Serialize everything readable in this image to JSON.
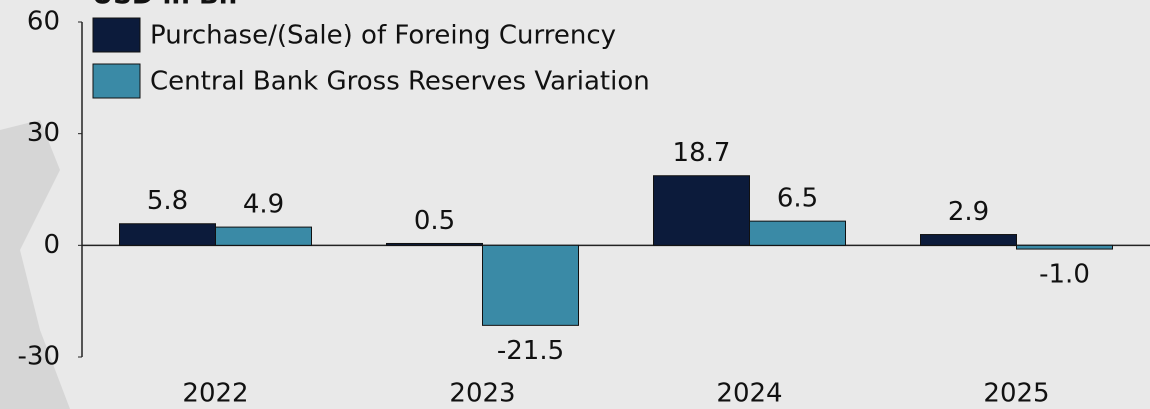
{
  "chart_data": {
    "type": "bar",
    "title": "USD in Bn",
    "categories": [
      "2022",
      "2023",
      "2024",
      "2025"
    ],
    "series": [
      {
        "name": "Purchase/(Sale) of Foreing Currency",
        "color": "#0c1b3b",
        "values": [
          5.8,
          0.5,
          18.7,
          2.9
        ],
        "value_labels": [
          "5.8",
          "0.5",
          "18.7",
          "2.9"
        ]
      },
      {
        "name": "Central Bank Gross Reserves Variation",
        "color": "#3a8aa6",
        "values": [
          4.9,
          -21.5,
          6.5,
          -1.0
        ],
        "value_labels": [
          "4.9",
          "-21.5",
          "6.5",
          "-1.0"
        ]
      }
    ],
    "ylim": [
      -30,
      60
    ],
    "yticks": [
      -30,
      0,
      30,
      60
    ],
    "legend": "top-left"
  }
}
